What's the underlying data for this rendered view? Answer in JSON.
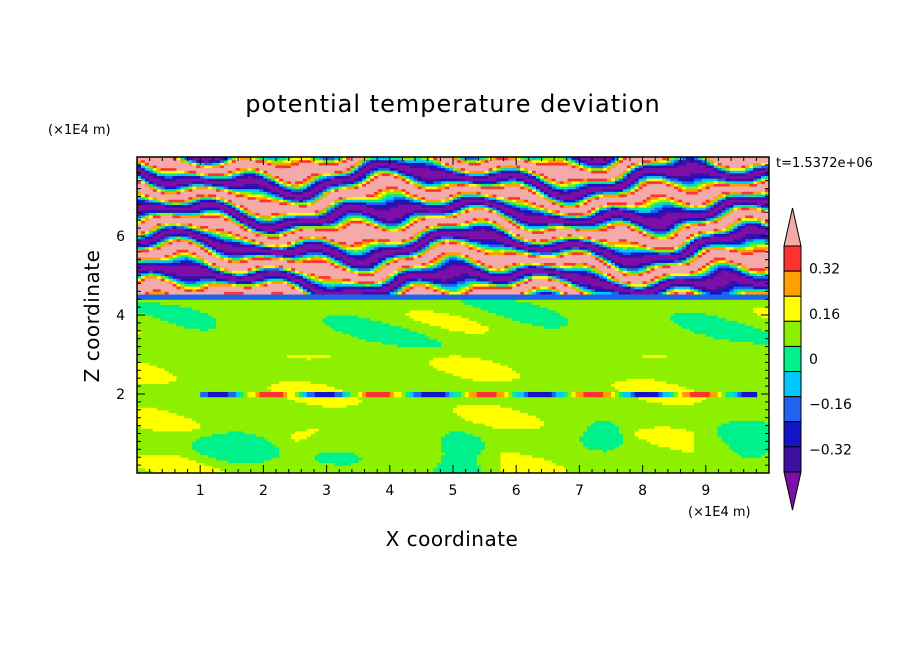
{
  "chart_data": {
    "type": "heatmap",
    "title": "potential temperature deviation",
    "xlabel": "X coordinate",
    "ylabel": "Z coordinate",
    "x_unit": "(×1E4 m)",
    "y_unit": "(×1E4 m)",
    "time_label": "t=1.5372e+06",
    "xlim": [
      0,
      10
    ],
    "ylim": [
      0,
      8
    ],
    "x_ticks": [
      "1",
      "2",
      "3",
      "4",
      "5",
      "6",
      "7",
      "8",
      "9"
    ],
    "y_ticks": [
      "2",
      "4",
      "6"
    ],
    "colorbar": {
      "levels": [
        -0.4,
        -0.32,
        -0.24,
        -0.16,
        -0.08,
        0,
        0.08,
        0.16,
        0.24,
        0.32,
        0.4
      ],
      "labels": [
        "0.32",
        "0.16",
        "0",
        "−0.16",
        "−0.32"
      ],
      "label_values": [
        0.32,
        0.16,
        0,
        -0.16,
        -0.32
      ],
      "colors": [
        "#7b0fa8",
        "#3f0fa0",
        "#1414c8",
        "#1e64f0",
        "#00c8ff",
        "#00f08c",
        "#8cf000",
        "#ffff00",
        "#ffa000",
        "#ff3232",
        "#f5aaaa"
      ],
      "extend": "both"
    },
    "regions": {
      "upper_layer": {
        "z_range": [
          4.5,
          8
        ],
        "pattern": "alternating bands of −0.4 and +0.4 with thin transitional colours"
      },
      "interface": {
        "z": 4.5,
        "value": -0.16
      },
      "lower_layer": {
        "z_range": [
          0,
          4.5
        ],
        "pattern": "mostly 0 to 0.08 with patches of −0.08"
      },
      "thin_layer": {
        "z": 2.0,
        "value": 0.24
      }
    }
  }
}
